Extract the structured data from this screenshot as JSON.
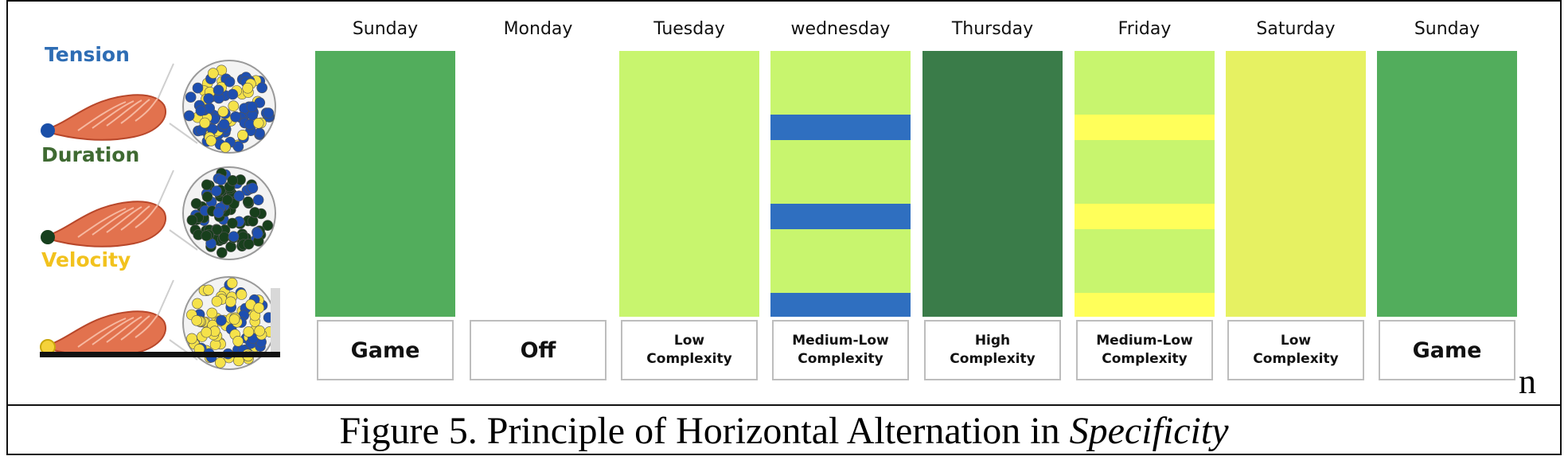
{
  "legend": [
    {
      "label": "Tension",
      "color": "#2e6db4",
      "dot": "#1a4fa8",
      "dominant": "#1e4fb0",
      "secondary": "#f5e24a"
    },
    {
      "label": "Duration",
      "color": "#3f6a32",
      "dot": "#17401e",
      "dominant": "#183f1c",
      "secondary": "#1e4fb0"
    },
    {
      "label": "Velocity",
      "color": "#f2c21e",
      "dot": "#f5d23a",
      "dominant": "#f5e24a",
      "secondary": "#1e4fb0"
    }
  ],
  "days": [
    {
      "name": "Sunday",
      "label": "Game",
      "size": "big",
      "fill": "#52ad5c",
      "stripe": null
    },
    {
      "name": "Monday",
      "label": "Off",
      "size": "big",
      "fill": "#ffffff",
      "stripe": null
    },
    {
      "name": "Tuesday",
      "label": "Low\nComplexity",
      "size": "small",
      "fill": "#c8f56e",
      "stripe": null
    },
    {
      "name": "wednesday",
      "label": "Medium-Low\nComplexity",
      "size": "small",
      "fill": "#c8f56e",
      "stripe": "#2f6fc0"
    },
    {
      "name": "Thursday",
      "label": "High\nComplexity",
      "size": "small",
      "fill": "#3a7c49",
      "stripe": null
    },
    {
      "name": "Friday",
      "label": "Medium-Low\nComplexity",
      "size": "small",
      "fill": "#c8f56e",
      "stripe": "#ffff5a"
    },
    {
      "name": "Saturday",
      "label": "Low\nComplexity",
      "size": "small",
      "fill": "#e6f162",
      "stripe": null
    },
    {
      "name": "Sunday",
      "label": "Game",
      "size": "big",
      "fill": "#52ad5c",
      "stripe": null
    }
  ],
  "stray_char": "n",
  "caption": {
    "prefix": "Figure 5. Principle of Horizontal Alternation in ",
    "emphasis": "Specificity"
  }
}
